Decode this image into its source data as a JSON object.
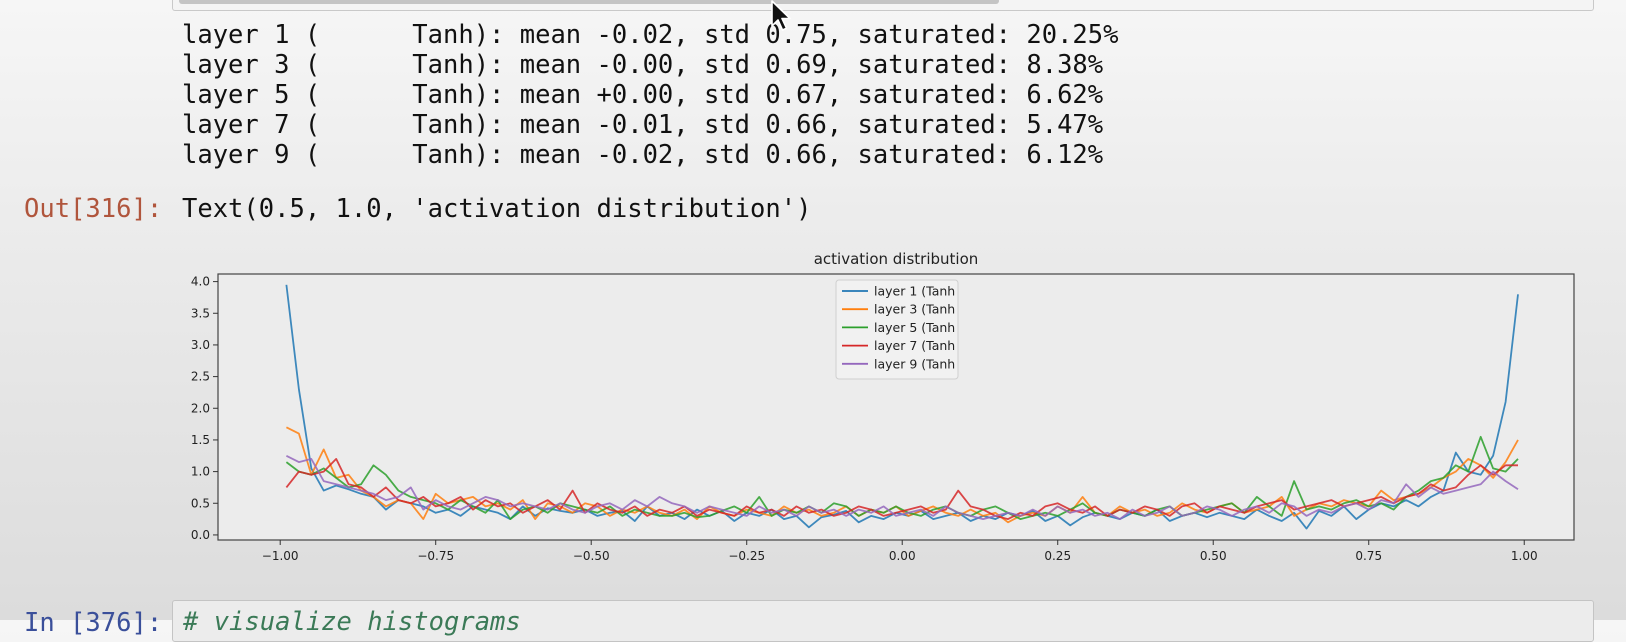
{
  "stdout_lines": [
    "layer 1 (      Tanh): mean -0.02, std 0.75, saturated: 20.25%",
    "layer 3 (      Tanh): mean -0.00, std 0.69, saturated: 8.38%",
    "layer 5 (      Tanh): mean +0.00, std 0.67, saturated: 6.62%",
    "layer 7 (      Tanh): mean -0.01, std 0.66, saturated: 5.47%",
    "layer 9 (      Tanh): mean -0.02, std 0.66, saturated: 6.12%"
  ],
  "output": {
    "prompt": "Out[316]:",
    "text": "Text(0.5, 1.0, 'activation distribution')"
  },
  "next_cell": {
    "prompt": "In [376]:",
    "code": "# visualize histograms"
  },
  "chart_data": {
    "type": "line",
    "title": "activation distribution",
    "xlabel": "",
    "ylabel": "",
    "xlim": [
      -1.1,
      1.08
    ],
    "ylim": [
      -0.08,
      4.12
    ],
    "xticks": [
      -1.0,
      -0.75,
      -0.5,
      -0.25,
      0.0,
      0.25,
      0.5,
      0.75,
      1.0
    ],
    "xtick_labels": [
      "−1.00",
      "−0.75",
      "−0.50",
      "−0.25",
      "0.00",
      "0.25",
      "0.50",
      "0.75",
      "1.00"
    ],
    "yticks": [
      0.0,
      0.5,
      1.0,
      1.5,
      2.0,
      2.5,
      3.0,
      3.5,
      4.0
    ],
    "ytick_labels": [
      "0.0",
      "0.5",
      "1.0",
      "1.5",
      "2.0",
      "2.5",
      "3.0",
      "3.5",
      "4.0"
    ],
    "grid": false,
    "legend_position": "top-center",
    "x": [
      -0.99,
      -0.97,
      -0.95,
      -0.93,
      -0.91,
      -0.89,
      -0.87,
      -0.85,
      -0.83,
      -0.81,
      -0.79,
      -0.77,
      -0.75,
      -0.73,
      -0.71,
      -0.69,
      -0.67,
      -0.65,
      -0.63,
      -0.61,
      -0.59,
      -0.57,
      -0.55,
      -0.53,
      -0.51,
      -0.49,
      -0.47,
      -0.45,
      -0.43,
      -0.41,
      -0.39,
      -0.37,
      -0.35,
      -0.33,
      -0.31,
      -0.29,
      -0.27,
      -0.25,
      -0.23,
      -0.21,
      -0.19,
      -0.17,
      -0.15,
      -0.13,
      -0.11,
      -0.09,
      -0.07,
      -0.05,
      -0.03,
      -0.01,
      0.01,
      0.03,
      0.05,
      0.07,
      0.09,
      0.11,
      0.13,
      0.15,
      0.17,
      0.19,
      0.21,
      0.23,
      0.25,
      0.27,
      0.29,
      0.31,
      0.33,
      0.35,
      0.37,
      0.39,
      0.41,
      0.43,
      0.45,
      0.47,
      0.49,
      0.51,
      0.53,
      0.55,
      0.57,
      0.59,
      0.61,
      0.63,
      0.65,
      0.67,
      0.69,
      0.71,
      0.73,
      0.75,
      0.77,
      0.79,
      0.81,
      0.83,
      0.85,
      0.87,
      0.89,
      0.91,
      0.93,
      0.95,
      0.97,
      0.99
    ],
    "series": [
      {
        "name": "layer 1 (Tanh",
        "color": "#1f77b4",
        "values": [
          3.95,
          2.3,
          1.05,
          0.7,
          0.78,
          0.72,
          0.65,
          0.6,
          0.4,
          0.55,
          0.5,
          0.45,
          0.35,
          0.4,
          0.3,
          0.45,
          0.4,
          0.35,
          0.25,
          0.45,
          0.3,
          0.42,
          0.38,
          0.35,
          0.4,
          0.3,
          0.35,
          0.38,
          0.22,
          0.45,
          0.3,
          0.35,
          0.25,
          0.4,
          0.3,
          0.38,
          0.22,
          0.35,
          0.3,
          0.4,
          0.25,
          0.3,
          0.12,
          0.28,
          0.32,
          0.38,
          0.2,
          0.3,
          0.25,
          0.35,
          0.3,
          0.38,
          0.25,
          0.3,
          0.35,
          0.22,
          0.3,
          0.25,
          0.35,
          0.3,
          0.38,
          0.22,
          0.3,
          0.15,
          0.28,
          0.35,
          0.3,
          0.25,
          0.35,
          0.3,
          0.4,
          0.22,
          0.3,
          0.35,
          0.28,
          0.35,
          0.3,
          0.25,
          0.4,
          0.3,
          0.22,
          0.35,
          0.1,
          0.38,
          0.3,
          0.45,
          0.25,
          0.4,
          0.5,
          0.45,
          0.55,
          0.45,
          0.6,
          0.7,
          1.3,
          1.0,
          0.95,
          1.25,
          2.1,
          3.8
        ]
      },
      {
        "name": "layer 3 (Tanh",
        "color": "#ff7f0e",
        "values": [
          1.7,
          1.6,
          0.95,
          1.35,
          0.9,
          0.95,
          0.7,
          0.6,
          0.45,
          0.55,
          0.5,
          0.25,
          0.65,
          0.5,
          0.55,
          0.6,
          0.45,
          0.5,
          0.4,
          0.55,
          0.25,
          0.5,
          0.45,
          0.35,
          0.5,
          0.45,
          0.3,
          0.4,
          0.35,
          0.45,
          0.35,
          0.3,
          0.4,
          0.25,
          0.45,
          0.35,
          0.3,
          0.4,
          0.35,
          0.3,
          0.45,
          0.35,
          0.4,
          0.3,
          0.35,
          0.45,
          0.3,
          0.4,
          0.35,
          0.45,
          0.3,
          0.38,
          0.45,
          0.35,
          0.3,
          0.4,
          0.3,
          0.35,
          0.2,
          0.3,
          0.35,
          0.3,
          0.45,
          0.35,
          0.6,
          0.35,
          0.3,
          0.45,
          0.35,
          0.4,
          0.3,
          0.35,
          0.5,
          0.4,
          0.35,
          0.45,
          0.5,
          0.35,
          0.4,
          0.45,
          0.6,
          0.3,
          0.4,
          0.5,
          0.45,
          0.55,
          0.5,
          0.45,
          0.7,
          0.55,
          0.6,
          0.65,
          0.75,
          0.9,
          1.0,
          1.2,
          1.1,
          0.9,
          1.15,
          1.5
        ]
      },
      {
        "name": "layer 5 (Tanh",
        "color": "#2ca02c",
        "values": [
          1.15,
          1.0,
          0.95,
          1.05,
          0.9,
          0.75,
          0.8,
          1.1,
          0.95,
          0.7,
          0.6,
          0.55,
          0.5,
          0.4,
          0.55,
          0.45,
          0.35,
          0.55,
          0.25,
          0.4,
          0.45,
          0.35,
          0.5,
          0.45,
          0.4,
          0.35,
          0.45,
          0.3,
          0.4,
          0.35,
          0.3,
          0.3,
          0.35,
          0.28,
          0.3,
          0.38,
          0.45,
          0.35,
          0.6,
          0.3,
          0.4,
          0.35,
          0.45,
          0.35,
          0.5,
          0.45,
          0.3,
          0.4,
          0.35,
          0.45,
          0.35,
          0.3,
          0.4,
          0.45,
          0.35,
          0.3,
          0.4,
          0.45,
          0.35,
          0.25,
          0.3,
          0.35,
          0.3,
          0.4,
          0.5,
          0.35,
          0.3,
          0.4,
          0.35,
          0.3,
          0.4,
          0.45,
          0.3,
          0.35,
          0.4,
          0.45,
          0.5,
          0.35,
          0.6,
          0.45,
          0.3,
          0.85,
          0.4,
          0.45,
          0.4,
          0.5,
          0.55,
          0.45,
          0.5,
          0.4,
          0.6,
          0.7,
          0.85,
          0.9,
          1.1,
          1.0,
          1.55,
          1.05,
          1.0,
          1.2
        ]
      },
      {
        "name": "layer 7 (Tanh",
        "color": "#d62728",
        "values": [
          0.75,
          1.0,
          0.95,
          1.0,
          1.2,
          0.8,
          0.75,
          0.6,
          0.75,
          0.55,
          0.5,
          0.6,
          0.45,
          0.5,
          0.6,
          0.4,
          0.55,
          0.45,
          0.5,
          0.35,
          0.45,
          0.55,
          0.4,
          0.7,
          0.35,
          0.5,
          0.4,
          0.35,
          0.45,
          0.3,
          0.4,
          0.35,
          0.45,
          0.3,
          0.4,
          0.35,
          0.3,
          0.45,
          0.35,
          0.4,
          0.3,
          0.45,
          0.35,
          0.4,
          0.3,
          0.35,
          0.45,
          0.4,
          0.3,
          0.35,
          0.4,
          0.45,
          0.35,
          0.4,
          0.7,
          0.45,
          0.4,
          0.3,
          0.25,
          0.35,
          0.3,
          0.45,
          0.5,
          0.4,
          0.35,
          0.45,
          0.3,
          0.4,
          0.35,
          0.45,
          0.4,
          0.3,
          0.45,
          0.5,
          0.35,
          0.45,
          0.4,
          0.35,
          0.45,
          0.5,
          0.55,
          0.4,
          0.45,
          0.5,
          0.55,
          0.45,
          0.5,
          0.55,
          0.6,
          0.5,
          0.6,
          0.65,
          0.8,
          0.7,
          0.75,
          0.95,
          1.1,
          0.95,
          1.1,
          1.1
        ]
      },
      {
        "name": "layer 9 (Tanh",
        "color": "#9467bd",
        "values": [
          1.25,
          1.15,
          1.2,
          0.85,
          0.8,
          0.75,
          0.7,
          0.65,
          0.55,
          0.6,
          0.75,
          0.4,
          0.55,
          0.45,
          0.4,
          0.5,
          0.6,
          0.55,
          0.45,
          0.5,
          0.45,
          0.4,
          0.5,
          0.4,
          0.35,
          0.45,
          0.5,
          0.4,
          0.55,
          0.45,
          0.6,
          0.5,
          0.45,
          0.35,
          0.45,
          0.4,
          0.35,
          0.3,
          0.45,
          0.35,
          0.4,
          0.3,
          0.45,
          0.35,
          0.4,
          0.3,
          0.4,
          0.35,
          0.45,
          0.3,
          0.35,
          0.4,
          0.3,
          0.45,
          0.35,
          0.3,
          0.25,
          0.3,
          0.35,
          0.3,
          0.4,
          0.3,
          0.45,
          0.35,
          0.4,
          0.3,
          0.35,
          0.25,
          0.4,
          0.3,
          0.35,
          0.45,
          0.3,
          0.35,
          0.45,
          0.4,
          0.3,
          0.4,
          0.45,
          0.35,
          0.5,
          0.45,
          0.3,
          0.4,
          0.35,
          0.45,
          0.5,
          0.4,
          0.55,
          0.5,
          0.8,
          0.6,
          0.75,
          0.65,
          0.7,
          0.75,
          0.8,
          1.0,
          0.85,
          0.72
        ]
      }
    ]
  }
}
